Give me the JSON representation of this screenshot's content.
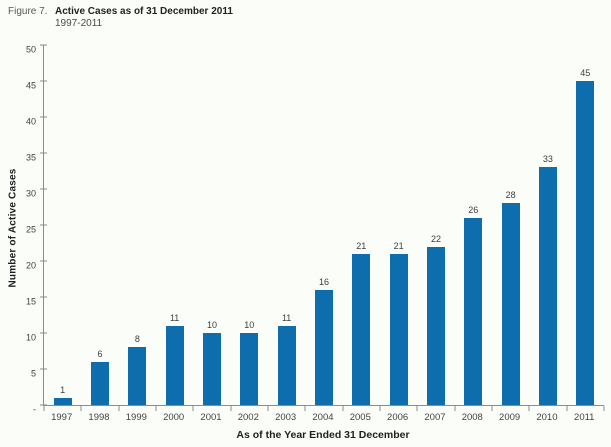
{
  "figure": {
    "label": "Figure 7.",
    "title": "Active Cases as of 31 December 2011",
    "subtitle": "1997-2011"
  },
  "chart_data": {
    "type": "bar",
    "title": "Active Cases as of 31 December 2011",
    "subtitle": "1997-2011",
    "categories": [
      "1997",
      "1998",
      "1999",
      "2000",
      "2001",
      "2002",
      "2003",
      "2004",
      "2005",
      "2006",
      "2007",
      "2008",
      "2009",
      "2010",
      "2011"
    ],
    "values": [
      1,
      6,
      8,
      11,
      10,
      10,
      11,
      16,
      21,
      21,
      22,
      26,
      28,
      33,
      45
    ],
    "xlabel": "As of the Year Ended 31 December",
    "ylabel": "Number of Active Cases",
    "ylim": [
      0,
      50
    ],
    "ytick_step": 5,
    "ytick_labels": [
      "-",
      "5",
      "10",
      "15",
      "20",
      "25",
      "30",
      "35",
      "40",
      "45",
      "50"
    ],
    "grid": false,
    "legend": "none",
    "value_labels": true
  },
  "colors": {
    "bar": "#0e6ead",
    "background": "#fbfdf8",
    "axis_line": "#8a8c8e",
    "label_text": "#3b3c3e"
  }
}
